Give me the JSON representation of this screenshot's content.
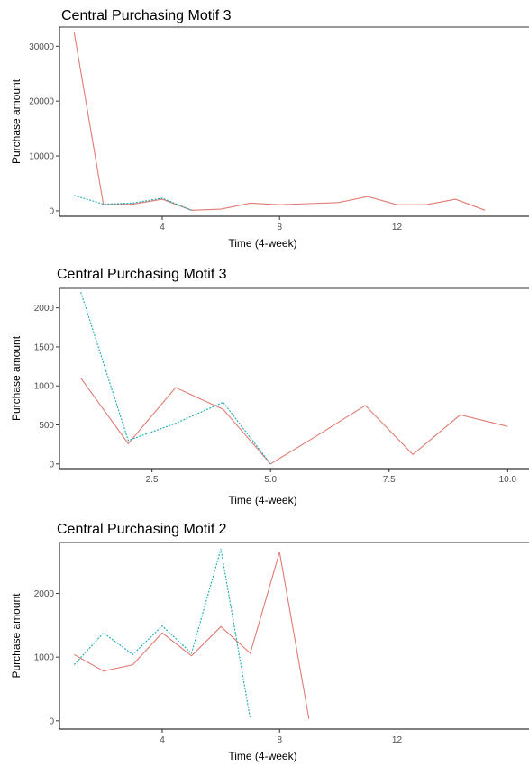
{
  "chart_data": [
    {
      "type": "line",
      "title": "Central Purchasing Motif 3",
      "xlabel": "Time (4-week)",
      "ylabel": "Purchase amount",
      "xlim": [
        0.5,
        16.5
      ],
      "ylim": [
        -1000,
        33500
      ],
      "xticks": [
        4,
        8,
        12
      ],
      "yticks": [
        0,
        10000,
        20000,
        30000
      ],
      "grid": false,
      "series": [
        {
          "color": "#e07b72",
          "style": "solid",
          "x": [
            1,
            2,
            3,
            4,
            5,
            6,
            7,
            8,
            9,
            10,
            11,
            12,
            13,
            14,
            15
          ],
          "y": [
            32500,
            1100,
            1200,
            2100,
            100,
            300,
            1400,
            1100,
            1300,
            1500,
            2600,
            1100,
            1100,
            2100,
            100
          ]
        },
        {
          "color": "#17a9b4",
          "style": "dotted",
          "x": [
            1,
            2,
            3,
            4,
            5
          ],
          "y": [
            2800,
            1200,
            1400,
            2300,
            100
          ]
        }
      ]
    },
    {
      "type": "line",
      "title": "Central Purchasing Motif 3",
      "xlabel": "Time (4-week)",
      "ylabel": "Purchase amount",
      "xlim": [
        0.55,
        10.45
      ],
      "ylim": [
        -60,
        2250
      ],
      "xticks": [
        2.5,
        5.0,
        7.5,
        10.0
      ],
      "xtick_labels": [
        "2.5",
        "5.0",
        "7.5",
        "10.0"
      ],
      "yticks": [
        0,
        500,
        1000,
        1500,
        2000
      ],
      "grid": false,
      "series": [
        {
          "color": "#e07b72",
          "style": "solid",
          "x": [
            1,
            2,
            3,
            4,
            5,
            6,
            7,
            8,
            9,
            10
          ],
          "y": [
            1100,
            260,
            980,
            700,
            0,
            370,
            750,
            120,
            630,
            480
          ]
        },
        {
          "color": "#17a9b4",
          "style": "dotted",
          "x": [
            1,
            2,
            3,
            4,
            5
          ],
          "y": [
            2200,
            300,
            520,
            790,
            0
          ]
        }
      ]
    },
    {
      "type": "line",
      "title": "Central Purchasing Motif 2",
      "xlabel": "Time (4-week)",
      "ylabel": "Purchase amount",
      "xlim": [
        0.5,
        16.5
      ],
      "ylim": [
        -130,
        2800
      ],
      "xticks": [
        4,
        8,
        12
      ],
      "yticks": [
        0,
        1000,
        2000
      ],
      "grid": false,
      "series": [
        {
          "color": "#e07b72",
          "style": "solid",
          "x": [
            1,
            2,
            3,
            4,
            5,
            6,
            7,
            8,
            9
          ],
          "y": [
            1040,
            780,
            880,
            1380,
            1020,
            1480,
            1060,
            2650,
            30
          ]
        },
        {
          "color": "#17a9b4",
          "style": "dotted",
          "x": [
            1,
            2,
            3,
            4,
            5,
            6,
            7
          ],
          "y": [
            880,
            1380,
            1040,
            1490,
            1060,
            2700,
            30
          ]
        }
      ]
    }
  ]
}
